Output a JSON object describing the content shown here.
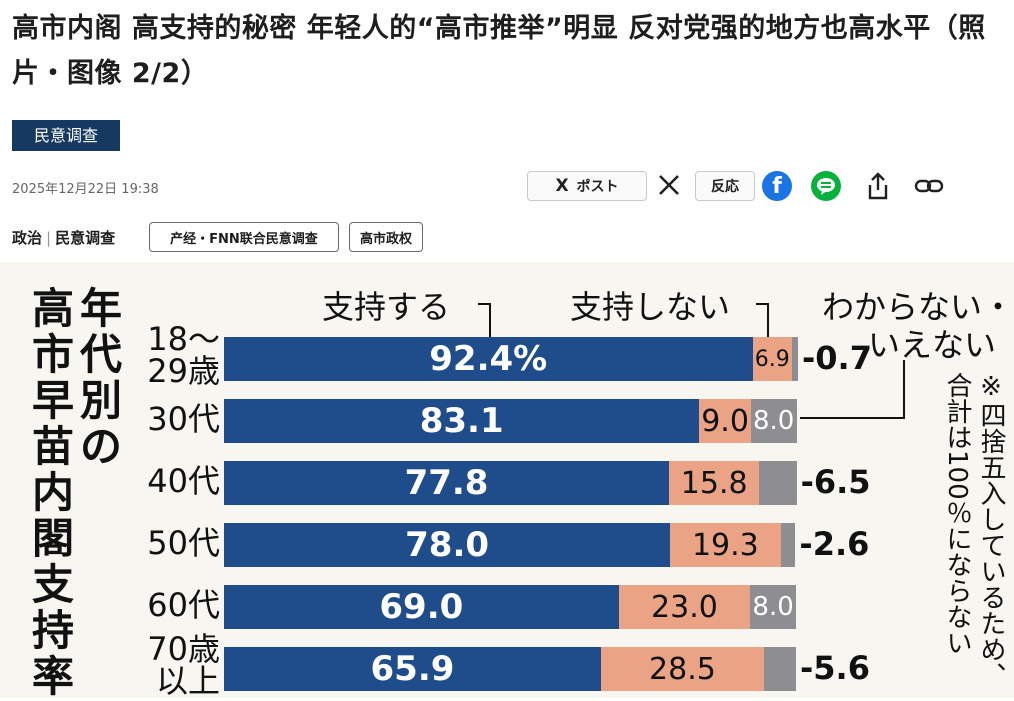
{
  "article": {
    "headline": "高市内阁 高支持的秘密 年轻人的“高市推举”明显 反对党强的地方也高水平（照片・图像 2/2）",
    "category_badge": "民意调查",
    "date": "2025年12月22日 19:38"
  },
  "share_bar": {
    "post_label": "ポスト",
    "x_mark": "X",
    "reaction_label": "反応",
    "facebook_mark": "f",
    "icons": [
      "x-logo-icon",
      "facebook-icon",
      "line-icon",
      "share-icon",
      "link-icon"
    ]
  },
  "breadcrumbs": {
    "primary": "政治",
    "secondary": "民意调查"
  },
  "tags": [
    "产经・FNN联合民意调查",
    "高市政权"
  ],
  "chart": {
    "title": "年代別の高市早苗内閣支持率",
    "legend": {
      "support": "支持する",
      "not_support": "支持しない",
      "dont_know": "わからない・いえない"
    },
    "note": "※四捨五入しているため、合計は100％にならない"
  },
  "chart_data": {
    "type": "bar",
    "stacked": true,
    "orientation": "horizontal",
    "title": "年代別の高市早苗内閣支持率",
    "categories": [
      "18〜29歳",
      "30代",
      "40代",
      "50代",
      "60代",
      "70歳以上"
    ],
    "series": [
      {
        "name": "支持する",
        "values": [
          92.4,
          83.1,
          77.8,
          78.0,
          69.0,
          65.9
        ],
        "labels": [
          "92.4%",
          "83.1",
          "77.8",
          "78.0",
          "69.0",
          "65.9"
        ],
        "color": "#1f4d8c"
      },
      {
        "name": "支持しない",
        "values": [
          6.9,
          9.0,
          15.8,
          19.3,
          23.0,
          28.5
        ],
        "labels": [
          "6.9",
          "9.0",
          "15.8",
          "19.3",
          "23.0",
          "28.5"
        ],
        "color": "#eaa485"
      },
      {
        "name": "わからない・いえない",
        "values": [
          0.7,
          8.0,
          6.5,
          2.6,
          8.0,
          5.6
        ],
        "labels": [
          "0.7",
          "8.0",
          "6.5",
          "2.6",
          "8.0",
          "5.6"
        ],
        "color": "#8e8e92"
      }
    ],
    "xlim": [
      0,
      100
    ],
    "unit": "%"
  }
}
